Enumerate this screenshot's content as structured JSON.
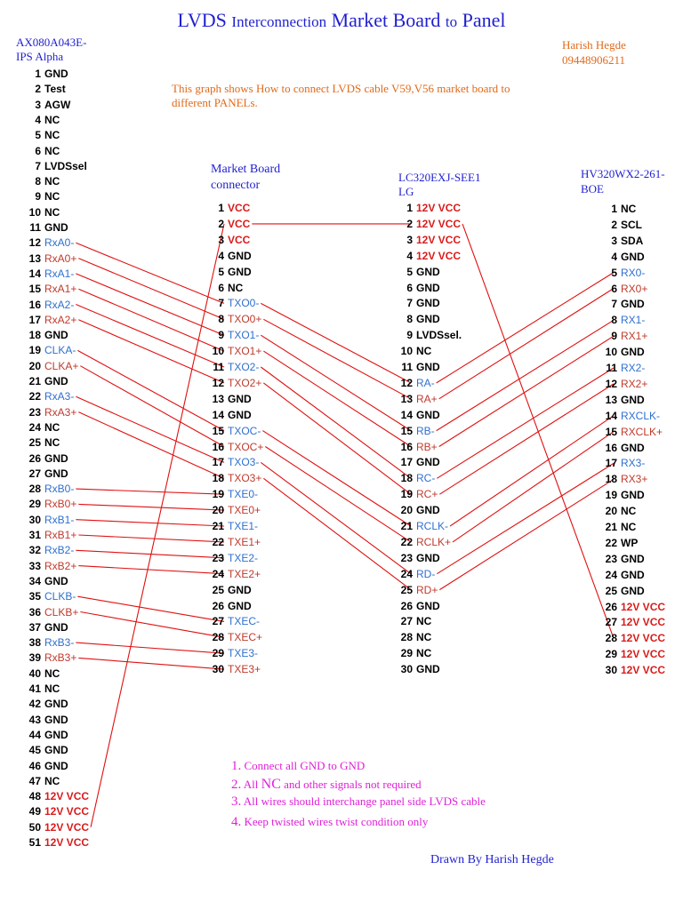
{
  "title": {
    "part1": "LVDS",
    "part2": "Interconnection",
    "part3": "Market Board",
    "part4": "to",
    "part5": "Panel"
  },
  "left_header": {
    "line1": "AX080A043E-",
    "line2": "IPS Alpha"
  },
  "author_header": {
    "name": "Harish Hegde",
    "phone": "09448906211"
  },
  "description": {
    "line1": "This graph shows How to connect LVDS cable V59,V56 market board to",
    "line2": "different PANELs."
  },
  "market_header": {
    "line1": "Market Board",
    "line2": "connector"
  },
  "lg_header": {
    "line1": "LC320EXJ-SEE1",
    "line2": "LG"
  },
  "boe_header": {
    "line1": "HV320WX2-261-",
    "line2": "BOE"
  },
  "colors": {
    "red": "#d81c1c",
    "blue": "#2e6fd0",
    "brown": "#c0392b",
    "wire": "#e01010",
    "title": "#1f1fd0",
    "note": "#e020d8",
    "orange": "#e06a1a"
  },
  "columns": {
    "ax": [
      {
        "n": "1",
        "s": "GND",
        "c": "black"
      },
      {
        "n": "2",
        "s": "Test",
        "c": "black"
      },
      {
        "n": "3",
        "s": "AGW",
        "c": "black"
      },
      {
        "n": "4",
        "s": "NC",
        "c": "black"
      },
      {
        "n": "5",
        "s": "NC",
        "c": "black"
      },
      {
        "n": "6",
        "s": "NC",
        "c": "black"
      },
      {
        "n": "7",
        "s": "LVDSsel",
        "c": "black"
      },
      {
        "n": "8",
        "s": "NC",
        "c": "black"
      },
      {
        "n": "9",
        "s": "NC",
        "c": "black"
      },
      {
        "n": "10",
        "s": "NC",
        "c": "black"
      },
      {
        "n": "11",
        "s": "GND",
        "c": "black"
      },
      {
        "n": "12",
        "s": "RxA0-",
        "c": "blue"
      },
      {
        "n": "13",
        "s": "RxA0+",
        "c": "brown"
      },
      {
        "n": "14",
        "s": "RxA1-",
        "c": "blue"
      },
      {
        "n": "15",
        "s": "RxA1+",
        "c": "brown"
      },
      {
        "n": "16",
        "s": "RxA2-",
        "c": "blue"
      },
      {
        "n": "17",
        "s": "RxA2+",
        "c": "brown"
      },
      {
        "n": "18",
        "s": "GND",
        "c": "black"
      },
      {
        "n": "19",
        "s": "CLKA-",
        "c": "blue"
      },
      {
        "n": "20",
        "s": "CLKA+",
        "c": "brown"
      },
      {
        "n": "21",
        "s": "GND",
        "c": "black"
      },
      {
        "n": "22",
        "s": "RxA3-",
        "c": "blue"
      },
      {
        "n": "23",
        "s": "RxA3+",
        "c": "brown"
      },
      {
        "n": "24",
        "s": "NC",
        "c": "black"
      },
      {
        "n": "25",
        "s": "NC",
        "c": "black"
      },
      {
        "n": "26",
        "s": "GND",
        "c": "black"
      },
      {
        "n": "27",
        "s": "GND",
        "c": "black"
      },
      {
        "n": "28",
        "s": "RxB0-",
        "c": "blue"
      },
      {
        "n": "29",
        "s": "RxB0+",
        "c": "brown"
      },
      {
        "n": "30",
        "s": "RxB1-",
        "c": "blue"
      },
      {
        "n": "31",
        "s": "RxB1+",
        "c": "brown"
      },
      {
        "n": "32",
        "s": "RxB2-",
        "c": "blue"
      },
      {
        "n": "33",
        "s": "RxB2+",
        "c": "brown"
      },
      {
        "n": "34",
        "s": "GND",
        "c": "black"
      },
      {
        "n": "35",
        "s": "CLKB-",
        "c": "blue"
      },
      {
        "n": "36",
        "s": "CLKB+",
        "c": "brown"
      },
      {
        "n": "37",
        "s": "GND",
        "c": "black"
      },
      {
        "n": "38",
        "s": "RxB3-",
        "c": "blue"
      },
      {
        "n": "39",
        "s": "RxB3+",
        "c": "brown"
      },
      {
        "n": "40",
        "s": "NC",
        "c": "black"
      },
      {
        "n": "41",
        "s": "NC",
        "c": "black"
      },
      {
        "n": "42",
        "s": "GND",
        "c": "black"
      },
      {
        "n": "43",
        "s": "GND",
        "c": "black"
      },
      {
        "n": "44",
        "s": "GND",
        "c": "black"
      },
      {
        "n": "45",
        "s": "GND",
        "c": "black"
      },
      {
        "n": "46",
        "s": "GND",
        "c": "black"
      },
      {
        "n": "47",
        "s": "NC",
        "c": "black"
      },
      {
        "n": "48",
        "s": "12V VCC",
        "c": "red"
      },
      {
        "n": "49",
        "s": "12V VCC",
        "c": "red"
      },
      {
        "n": "50",
        "s": "12V VCC",
        "c": "red"
      },
      {
        "n": "51",
        "s": "12V VCC",
        "c": "red"
      }
    ],
    "mb": [
      {
        "n": "1",
        "s": "VCC",
        "c": "red"
      },
      {
        "n": "2",
        "s": "VCC",
        "c": "red"
      },
      {
        "n": "3",
        "s": "VCC",
        "c": "red"
      },
      {
        "n": "4",
        "s": "GND",
        "c": "black"
      },
      {
        "n": "5",
        "s": "GND",
        "c": "black"
      },
      {
        "n": "6",
        "s": "NC",
        "c": "black"
      },
      {
        "n": "7",
        "s": "TXO0-",
        "c": "blue"
      },
      {
        "n": "8",
        "s": "TXO0+",
        "c": "brown"
      },
      {
        "n": "9",
        "s": "TXO1-",
        "c": "blue"
      },
      {
        "n": "10",
        "s": "TXO1+",
        "c": "brown"
      },
      {
        "n": "11",
        "s": "TXO2-",
        "c": "blue"
      },
      {
        "n": "12",
        "s": "TXO2+",
        "c": "brown"
      },
      {
        "n": "13",
        "s": "GND",
        "c": "black"
      },
      {
        "n": "14",
        "s": "GND",
        "c": "black"
      },
      {
        "n": "15",
        "s": "TXOC-",
        "c": "blue"
      },
      {
        "n": "16",
        "s": "TXOC+",
        "c": "brown"
      },
      {
        "n": "17",
        "s": "TXO3-",
        "c": "blue"
      },
      {
        "n": "18",
        "s": "TXO3+",
        "c": "brown"
      },
      {
        "n": "19",
        "s": "TXE0-",
        "c": "blue"
      },
      {
        "n": "20",
        "s": "TXE0+",
        "c": "brown"
      },
      {
        "n": "21",
        "s": "TXE1-",
        "c": "blue"
      },
      {
        "n": "22",
        "s": "TXE1+",
        "c": "brown"
      },
      {
        "n": "23",
        "s": "TXE2-",
        "c": "blue"
      },
      {
        "n": "24",
        "s": "TXE2+",
        "c": "brown"
      },
      {
        "n": "25",
        "s": "GND",
        "c": "black"
      },
      {
        "n": "26",
        "s": "GND",
        "c": "black"
      },
      {
        "n": "27",
        "s": "TXEC-",
        "c": "blue"
      },
      {
        "n": "28",
        "s": "TXEC+",
        "c": "brown"
      },
      {
        "n": "29",
        "s": "TXE3-",
        "c": "blue"
      },
      {
        "n": "30",
        "s": "TXE3+",
        "c": "brown"
      }
    ],
    "lg": [
      {
        "n": "1",
        "s": "12V VCC",
        "c": "red"
      },
      {
        "n": "2",
        "s": "12V VCC",
        "c": "red"
      },
      {
        "n": "3",
        "s": "12V VCC",
        "c": "red"
      },
      {
        "n": "4",
        "s": "12V VCC",
        "c": "red"
      },
      {
        "n": "5",
        "s": "GND",
        "c": "black"
      },
      {
        "n": "6",
        "s": "GND",
        "c": "black"
      },
      {
        "n": "7",
        "s": "GND",
        "c": "black"
      },
      {
        "n": "8",
        "s": "GND",
        "c": "black"
      },
      {
        "n": "9",
        "s": "LVDSsel.",
        "c": "black"
      },
      {
        "n": "10",
        "s": "NC",
        "c": "black"
      },
      {
        "n": "11",
        "s": "GND",
        "c": "black"
      },
      {
        "n": "12",
        "s": "RA-",
        "c": "blue"
      },
      {
        "n": "13",
        "s": "RA+",
        "c": "brown"
      },
      {
        "n": "14",
        "s": "GND",
        "c": "black"
      },
      {
        "n": "15",
        "s": "RB-",
        "c": "blue"
      },
      {
        "n": "16",
        "s": "RB+",
        "c": "brown"
      },
      {
        "n": "17",
        "s": "GND",
        "c": "black"
      },
      {
        "n": "18",
        "s": "RC-",
        "c": "blue"
      },
      {
        "n": "19",
        "s": "RC+",
        "c": "brown"
      },
      {
        "n": "20",
        "s": "GND",
        "c": "black"
      },
      {
        "n": "21",
        "s": "RCLK-",
        "c": "blue"
      },
      {
        "n": "22",
        "s": "RCLK+",
        "c": "brown"
      },
      {
        "n": "23",
        "s": "GND",
        "c": "black"
      },
      {
        "n": "24",
        "s": "RD-",
        "c": "blue"
      },
      {
        "n": "25",
        "s": "RD+",
        "c": "brown"
      },
      {
        "n": "26",
        "s": "GND",
        "c": "black"
      },
      {
        "n": "27",
        "s": "NC",
        "c": "black"
      },
      {
        "n": "28",
        "s": "NC",
        "c": "black"
      },
      {
        "n": "29",
        "s": "NC",
        "c": "black"
      },
      {
        "n": "30",
        "s": "GND",
        "c": "black"
      }
    ],
    "boe": [
      {
        "n": "1",
        "s": "NC",
        "c": "black"
      },
      {
        "n": "2",
        "s": "SCL",
        "c": "black"
      },
      {
        "n": "3",
        "s": "SDA",
        "c": "black"
      },
      {
        "n": "4",
        "s": "GND",
        "c": "black"
      },
      {
        "n": "5",
        "s": "RX0-",
        "c": "blue"
      },
      {
        "n": "6",
        "s": "RX0+",
        "c": "brown"
      },
      {
        "n": "7",
        "s": "GND",
        "c": "black"
      },
      {
        "n": "8",
        "s": "RX1-",
        "c": "blue"
      },
      {
        "n": "9",
        "s": "RX1+",
        "c": "brown"
      },
      {
        "n": "10",
        "s": "GND",
        "c": "black"
      },
      {
        "n": "11",
        "s": "RX2-",
        "c": "blue"
      },
      {
        "n": "12",
        "s": "RX2+",
        "c": "brown"
      },
      {
        "n": "13",
        "s": "GND",
        "c": "black"
      },
      {
        "n": "14",
        "s": "RXCLK-",
        "c": "blue"
      },
      {
        "n": "15",
        "s": "RXCLK+",
        "c": "brown"
      },
      {
        "n": "16",
        "s": "GND",
        "c": "black"
      },
      {
        "n": "17",
        "s": "RX3-",
        "c": "blue"
      },
      {
        "n": "18",
        "s": "RX3+",
        "c": "brown"
      },
      {
        "n": "19",
        "s": "GND",
        "c": "black"
      },
      {
        "n": "20",
        "s": "NC",
        "c": "black"
      },
      {
        "n": "21",
        "s": "NC",
        "c": "black"
      },
      {
        "n": "22",
        "s": "WP",
        "c": "black"
      },
      {
        "n": "23",
        "s": "GND",
        "c": "black"
      },
      {
        "n": "24",
        "s": "GND",
        "c": "black"
      },
      {
        "n": "25",
        "s": "GND",
        "c": "black"
      },
      {
        "n": "26",
        "s": "12V VCC",
        "c": "red"
      },
      {
        "n": "27",
        "s": "12V VCC",
        "c": "red"
      },
      {
        "n": "28",
        "s": "12V VCC",
        "c": "red"
      },
      {
        "n": "29",
        "s": "12V VCC",
        "c": "red"
      },
      {
        "n": "30",
        "s": "12V VCC",
        "c": "red"
      }
    ]
  },
  "connections": [
    {
      "from": [
        "ax",
        "12"
      ],
      "to": [
        "mb",
        "7"
      ]
    },
    {
      "from": [
        "ax",
        "13"
      ],
      "to": [
        "mb",
        "8"
      ]
    },
    {
      "from": [
        "ax",
        "14"
      ],
      "to": [
        "mb",
        "9"
      ]
    },
    {
      "from": [
        "ax",
        "15"
      ],
      "to": [
        "mb",
        "10"
      ]
    },
    {
      "from": [
        "ax",
        "16"
      ],
      "to": [
        "mb",
        "11"
      ]
    },
    {
      "from": [
        "ax",
        "17"
      ],
      "to": [
        "mb",
        "12"
      ]
    },
    {
      "from": [
        "ax",
        "19"
      ],
      "to": [
        "mb",
        "15"
      ]
    },
    {
      "from": [
        "ax",
        "20"
      ],
      "to": [
        "mb",
        "16"
      ]
    },
    {
      "from": [
        "ax",
        "22"
      ],
      "to": [
        "mb",
        "17"
      ]
    },
    {
      "from": [
        "ax",
        "23"
      ],
      "to": [
        "mb",
        "18"
      ]
    },
    {
      "from": [
        "ax",
        "28"
      ],
      "to": [
        "mb",
        "19"
      ]
    },
    {
      "from": [
        "ax",
        "29"
      ],
      "to": [
        "mb",
        "20"
      ]
    },
    {
      "from": [
        "ax",
        "30"
      ],
      "to": [
        "mb",
        "21"
      ]
    },
    {
      "from": [
        "ax",
        "31"
      ],
      "to": [
        "mb",
        "22"
      ]
    },
    {
      "from": [
        "ax",
        "32"
      ],
      "to": [
        "mb",
        "23"
      ]
    },
    {
      "from": [
        "ax",
        "33"
      ],
      "to": [
        "mb",
        "24"
      ]
    },
    {
      "from": [
        "ax",
        "35"
      ],
      "to": [
        "mb",
        "27"
      ]
    },
    {
      "from": [
        "ax",
        "36"
      ],
      "to": [
        "mb",
        "28"
      ]
    },
    {
      "from": [
        "ax",
        "38"
      ],
      "to": [
        "mb",
        "29"
      ]
    },
    {
      "from": [
        "ax",
        "39"
      ],
      "to": [
        "mb",
        "30"
      ]
    },
    {
      "from": [
        "ax",
        "50"
      ],
      "to": [
        "mb",
        "2"
      ]
    },
    {
      "from": [
        "mb",
        "2"
      ],
      "to": [
        "lg",
        "2"
      ]
    },
    {
      "from": [
        "mb",
        "7"
      ],
      "to": [
        "lg",
        "12"
      ]
    },
    {
      "from": [
        "mb",
        "8"
      ],
      "to": [
        "lg",
        "13"
      ]
    },
    {
      "from": [
        "mb",
        "9"
      ],
      "to": [
        "lg",
        "15"
      ]
    },
    {
      "from": [
        "mb",
        "10"
      ],
      "to": [
        "lg",
        "16"
      ]
    },
    {
      "from": [
        "mb",
        "11"
      ],
      "to": [
        "lg",
        "18"
      ]
    },
    {
      "from": [
        "mb",
        "12"
      ],
      "to": [
        "lg",
        "19"
      ]
    },
    {
      "from": [
        "mb",
        "15"
      ],
      "to": [
        "lg",
        "21"
      ]
    },
    {
      "from": [
        "mb",
        "16"
      ],
      "to": [
        "lg",
        "22"
      ]
    },
    {
      "from": [
        "mb",
        "17"
      ],
      "to": [
        "lg",
        "24"
      ]
    },
    {
      "from": [
        "mb",
        "18"
      ],
      "to": [
        "lg",
        "25"
      ]
    },
    {
      "from": [
        "lg",
        "12"
      ],
      "to": [
        "boe",
        "5"
      ]
    },
    {
      "from": [
        "lg",
        "13"
      ],
      "to": [
        "boe",
        "6"
      ]
    },
    {
      "from": [
        "lg",
        "15"
      ],
      "to": [
        "boe",
        "8"
      ]
    },
    {
      "from": [
        "lg",
        "16"
      ],
      "to": [
        "boe",
        "9"
      ]
    },
    {
      "from": [
        "lg",
        "18"
      ],
      "to": [
        "boe",
        "11"
      ]
    },
    {
      "from": [
        "lg",
        "19"
      ],
      "to": [
        "boe",
        "12"
      ]
    },
    {
      "from": [
        "lg",
        "21"
      ],
      "to": [
        "boe",
        "14"
      ]
    },
    {
      "from": [
        "lg",
        "22"
      ],
      "to": [
        "boe",
        "15"
      ]
    },
    {
      "from": [
        "lg",
        "24"
      ],
      "to": [
        "boe",
        "17"
      ]
    },
    {
      "from": [
        "lg",
        "25"
      ],
      "to": [
        "boe",
        "18"
      ]
    },
    {
      "from": [
        "lg",
        "2"
      ],
      "to": [
        "boe",
        "28"
      ]
    }
  ],
  "notes": [
    {
      "num": "1.",
      "text": "Connect all GND to GND"
    },
    {
      "num": "2.",
      "pre": "All ",
      "nc": "NC",
      "text": " and other signals not required"
    },
    {
      "num": "3.",
      "text": "All wires should interchange panel side LVDS cable"
    },
    {
      "num": "4.",
      "text": "Keep twisted wires twist condition only"
    }
  ],
  "footer": "Drawn By Harish Hegde"
}
